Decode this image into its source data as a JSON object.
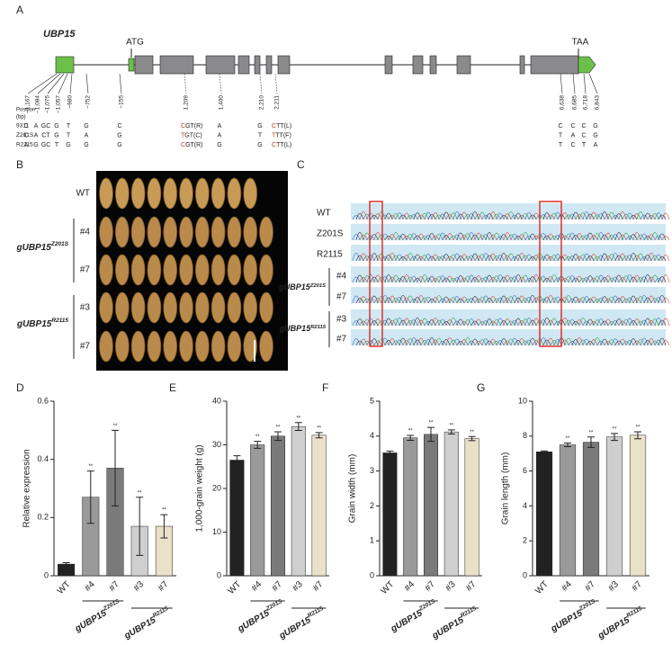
{
  "panel_labels": [
    "A",
    "B",
    "C",
    "D",
    "E",
    "F",
    "G"
  ],
  "gene": {
    "name": "UBP15",
    "start_label": "ATG",
    "stop_label": "TAA",
    "position_header": [
      "Position",
      "(bp)"
    ],
    "lines": [
      "9311",
      "Z201S",
      "R2115"
    ],
    "positions": [
      "−1,167",
      "−1,084",
      "−1,075",
      "−1,057",
      "−980",
      "−752",
      "−155",
      "1,209",
      "1,400",
      "2,210",
      "2,211",
      "6,638",
      "6,685",
      "6,718",
      "6,843"
    ],
    "alleles": [
      [
        "C",
        "A",
        "GC",
        "G",
        "T",
        "G",
        "C",
        "CGT(R)",
        "A",
        "G",
        "CTT(L)",
        "C",
        "C",
        "C",
        "G"
      ],
      [
        "C",
        "A",
        "CT",
        "G",
        "T",
        "A",
        "G",
        "TGT(C)",
        "A",
        "T",
        "TTT(F)",
        "T",
        "A",
        "C",
        "G"
      ],
      [
        "A",
        "G",
        "GC",
        "T",
        "G",
        "G",
        "G",
        "CGT(R)",
        "G",
        "G",
        "CTT(L)",
        "T",
        "C",
        "T",
        "A"
      ]
    ]
  },
  "panel_b": {
    "row_labels": [
      "WT",
      "#4",
      "#7",
      "#3",
      "#7"
    ],
    "groups": [
      {
        "base": "gUBP15",
        "sup": "Z201S"
      },
      {
        "base": "gUBP15",
        "sup": "R2115"
      }
    ]
  },
  "panel_c": {
    "row_labels": [
      "WT",
      "Z201S",
      "R2115",
      "#4",
      "#7",
      "#3",
      "#7"
    ],
    "groups": [
      {
        "base": "gUBP15",
        "sup": "Z201S"
      },
      {
        "base": "gUBP15",
        "sup": "R2115"
      }
    ]
  },
  "chart_data": [
    {
      "type": "bar",
      "ylabel": "Relative expression",
      "categories": [
        "WT",
        "#4",
        "#7",
        "#3",
        "#7"
      ],
      "values": [
        0.04,
        0.27,
        0.37,
        0.17,
        0.17
      ],
      "errors": [
        0.005,
        0.09,
        0.13,
        0.1,
        0.04
      ],
      "significance": [
        null,
        "**",
        "**",
        "**",
        "**"
      ],
      "colors": [
        "#222222",
        "#9a9a9a",
        "#7a7a7a",
        "#cfcfcf",
        "#e9e2c8"
      ],
      "groups": [
        {
          "base": "gUBP15",
          "sup": "Z201S"
        },
        {
          "base": "gUBP15",
          "sup": "R2115"
        }
      ],
      "ylim": [
        0,
        0.6
      ],
      "yticks": [
        0.0,
        0.2,
        0.4,
        0.6
      ]
    },
    {
      "type": "bar",
      "ylabel": "1,000-grain weight (g)",
      "categories": [
        "WT",
        "#4",
        "#7",
        "#3",
        "#7"
      ],
      "values": [
        26.5,
        30,
        32,
        34.2,
        32.2
      ],
      "errors": [
        1,
        0.8,
        1,
        0.9,
        0.6
      ],
      "significance": [
        null,
        "**",
        "**",
        "**",
        "**"
      ],
      "colors": [
        "#222222",
        "#9a9a9a",
        "#7a7a7a",
        "#cfcfcf",
        "#e9e2c8"
      ],
      "groups": [
        {
          "base": "gUBP15",
          "sup": "Z201S"
        },
        {
          "base": "gUBP15",
          "sup": "R2115"
        }
      ],
      "ylim": [
        0,
        40
      ],
      "yticks": [
        0,
        10,
        20,
        30,
        40
      ]
    },
    {
      "type": "bar",
      "ylabel": "Grain width (mm)",
      "categories": [
        "WT",
        "#4",
        "#7",
        "#3",
        "#7"
      ],
      "values": [
        3.52,
        3.95,
        4.05,
        4.12,
        3.93
      ],
      "errors": [
        0.05,
        0.07,
        0.2,
        0.06,
        0.06
      ],
      "significance": [
        null,
        "**",
        "**",
        "**",
        "**"
      ],
      "colors": [
        "#222222",
        "#9a9a9a",
        "#7a7a7a",
        "#cfcfcf",
        "#e9e2c8"
      ],
      "groups": [
        {
          "base": "gUBP15",
          "sup": "Z201S"
        },
        {
          "base": "gUBP15",
          "sup": "R2115"
        }
      ],
      "ylim": [
        0,
        5
      ],
      "yticks": [
        0,
        1,
        2,
        3,
        4,
        5
      ]
    },
    {
      "type": "bar",
      "ylabel": "Grain length (mm)",
      "categories": [
        "WT",
        "#4",
        "#7",
        "#3",
        "#7"
      ],
      "values": [
        7.1,
        7.5,
        7.65,
        7.95,
        8.05
      ],
      "errors": [
        0.05,
        0.1,
        0.3,
        0.2,
        0.2
      ],
      "significance": [
        null,
        "**",
        "**",
        "**",
        "**"
      ],
      "colors": [
        "#222222",
        "#9a9a9a",
        "#7a7a7a",
        "#cfcfcf",
        "#e9e2c8"
      ],
      "groups": [
        {
          "base": "gUBP15",
          "sup": "Z201S"
        },
        {
          "base": "gUBP15",
          "sup": "R2115"
        }
      ],
      "ylim": [
        0,
        10
      ],
      "yticks": [
        0,
        2,
        4,
        6,
        8,
        10
      ]
    }
  ]
}
